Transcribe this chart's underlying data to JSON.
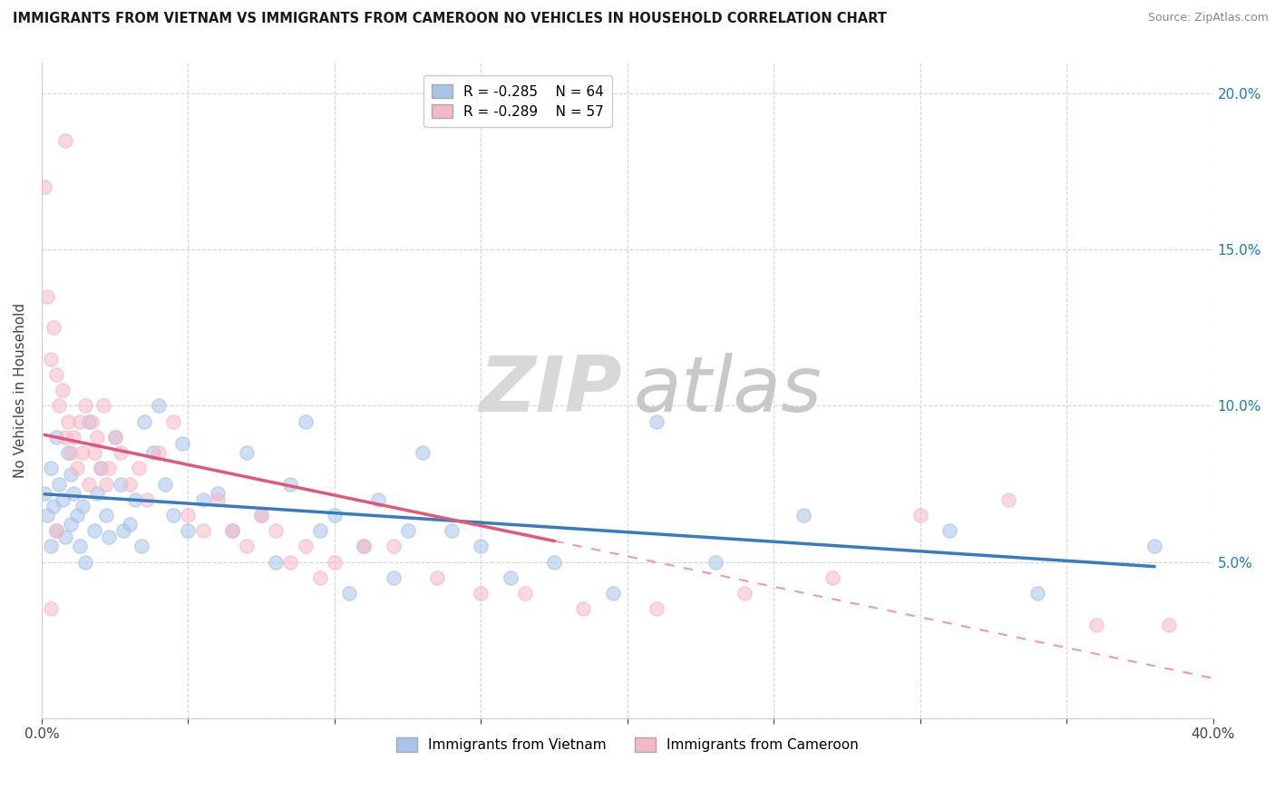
{
  "title": "IMMIGRANTS FROM VIETNAM VS IMMIGRANTS FROM CAMEROON NO VEHICLES IN HOUSEHOLD CORRELATION CHART",
  "source": "Source: ZipAtlas.com",
  "ylabel": "No Vehicles in Household",
  "r_vietnam": -0.285,
  "n_vietnam": 64,
  "r_cameroon": -0.289,
  "n_cameroon": 57,
  "color_vietnam": "#a8c4e8",
  "color_cameroon": "#f5b8c8",
  "color_trendline_vietnam": "#3a7abf",
  "color_trendline_cameroon": "#e05878",
  "watermark_zip": "ZIP",
  "watermark_atlas": "atlas",
  "vietnam_x": [
    0.001,
    0.002,
    0.003,
    0.003,
    0.004,
    0.005,
    0.005,
    0.006,
    0.007,
    0.008,
    0.009,
    0.01,
    0.01,
    0.011,
    0.012,
    0.013,
    0.014,
    0.015,
    0.016,
    0.018,
    0.019,
    0.02,
    0.022,
    0.023,
    0.025,
    0.027,
    0.028,
    0.03,
    0.032,
    0.034,
    0.035,
    0.038,
    0.04,
    0.042,
    0.045,
    0.048,
    0.05,
    0.055,
    0.06,
    0.065,
    0.07,
    0.075,
    0.08,
    0.085,
    0.09,
    0.095,
    0.1,
    0.105,
    0.11,
    0.115,
    0.12,
    0.125,
    0.13,
    0.14,
    0.15,
    0.16,
    0.175,
    0.195,
    0.21,
    0.23,
    0.26,
    0.31,
    0.34,
    0.38
  ],
  "vietnam_y": [
    0.072,
    0.065,
    0.08,
    0.055,
    0.068,
    0.06,
    0.09,
    0.075,
    0.07,
    0.058,
    0.085,
    0.062,
    0.078,
    0.072,
    0.065,
    0.055,
    0.068,
    0.05,
    0.095,
    0.06,
    0.072,
    0.08,
    0.065,
    0.058,
    0.09,
    0.075,
    0.06,
    0.062,
    0.07,
    0.055,
    0.095,
    0.085,
    0.1,
    0.075,
    0.065,
    0.088,
    0.06,
    0.07,
    0.072,
    0.06,
    0.085,
    0.065,
    0.05,
    0.075,
    0.095,
    0.06,
    0.065,
    0.04,
    0.055,
    0.07,
    0.045,
    0.06,
    0.085,
    0.06,
    0.055,
    0.045,
    0.05,
    0.04,
    0.095,
    0.05,
    0.065,
    0.06,
    0.04,
    0.055
  ],
  "cameroon_x": [
    0.001,
    0.002,
    0.003,
    0.004,
    0.005,
    0.006,
    0.007,
    0.008,
    0.009,
    0.01,
    0.011,
    0.012,
    0.013,
    0.014,
    0.015,
    0.016,
    0.017,
    0.018,
    0.019,
    0.02,
    0.021,
    0.022,
    0.023,
    0.025,
    0.027,
    0.03,
    0.033,
    0.036,
    0.04,
    0.045,
    0.05,
    0.055,
    0.06,
    0.065,
    0.07,
    0.075,
    0.08,
    0.085,
    0.09,
    0.095,
    0.1,
    0.11,
    0.12,
    0.135,
    0.15,
    0.165,
    0.185,
    0.21,
    0.24,
    0.27,
    0.3,
    0.33,
    0.36,
    0.385,
    0.005,
    0.008,
    0.003
  ],
  "cameroon_y": [
    0.17,
    0.135,
    0.115,
    0.125,
    0.11,
    0.1,
    0.105,
    0.09,
    0.095,
    0.085,
    0.09,
    0.08,
    0.095,
    0.085,
    0.1,
    0.075,
    0.095,
    0.085,
    0.09,
    0.08,
    0.1,
    0.075,
    0.08,
    0.09,
    0.085,
    0.075,
    0.08,
    0.07,
    0.085,
    0.095,
    0.065,
    0.06,
    0.07,
    0.06,
    0.055,
    0.065,
    0.06,
    0.05,
    0.055,
    0.045,
    0.05,
    0.055,
    0.055,
    0.045,
    0.04,
    0.04,
    0.035,
    0.035,
    0.04,
    0.045,
    0.065,
    0.07,
    0.03,
    0.03,
    0.06,
    0.185,
    0.035
  ],
  "xlim": [
    0.0,
    0.4
  ],
  "ylim": [
    0.0,
    0.21
  ],
  "x_ticks": [
    0.0,
    0.05,
    0.1,
    0.15,
    0.2,
    0.25,
    0.3,
    0.35,
    0.4
  ],
  "y_ticks": [
    0.0,
    0.05,
    0.1,
    0.15,
    0.2
  ],
  "y_tick_labels_right": [
    "",
    "5.0%",
    "10.0%",
    "15.0%",
    "20.0%"
  ]
}
